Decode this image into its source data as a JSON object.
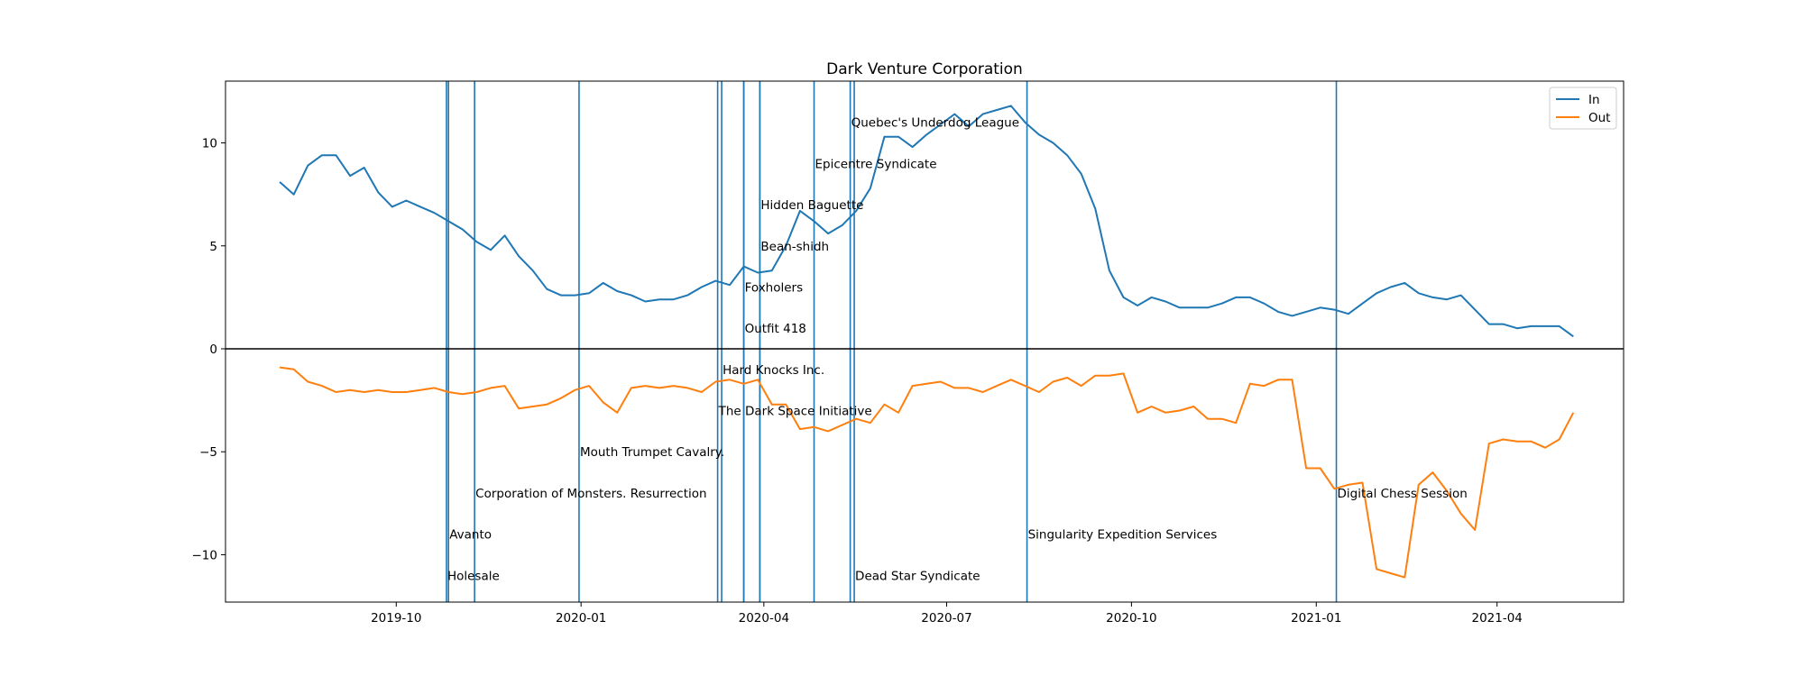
{
  "chart_data": {
    "type": "line",
    "title": "Dark Venture Corporation",
    "xlabel": "",
    "ylabel": "",
    "x_start": "2019-08-04",
    "x_range": [
      "2019-07-08",
      "2021-06-03"
    ],
    "ylim": [
      -12.3,
      13.0
    ],
    "grid": false,
    "legend_position": "top-right",
    "x_ticks": [
      {
        "date": "2019-10-01",
        "label": "2019-10"
      },
      {
        "date": "2020-01-01",
        "label": "2020-01"
      },
      {
        "date": "2020-04-01",
        "label": "2020-04"
      },
      {
        "date": "2020-07-01",
        "label": "2020-07"
      },
      {
        "date": "2020-10-01",
        "label": "2020-10"
      },
      {
        "date": "2021-01-01",
        "label": "2021-01"
      },
      {
        "date": "2021-04-01",
        "label": "2021-04"
      }
    ],
    "y_ticks": [
      -10,
      -5,
      0,
      5,
      10
    ],
    "zero_line": true,
    "series": [
      {
        "name": "In",
        "color": "#1f77b4",
        "values": [
          8.1,
          7.5,
          8.9,
          9.4,
          9.4,
          8.4,
          8.8,
          7.6,
          6.9,
          7.2,
          6.9,
          6.6,
          6.2,
          5.8,
          5.2,
          4.8,
          5.5,
          4.5,
          3.8,
          2.9,
          2.6,
          2.6,
          2.7,
          3.2,
          2.8,
          2.6,
          2.3,
          2.4,
          2.4,
          2.6,
          3.0,
          3.3,
          3.1,
          4.0,
          3.7,
          3.8,
          5.0,
          6.7,
          6.2,
          5.6,
          6.0,
          6.7,
          7.8,
          10.3,
          10.3,
          9.8,
          10.4,
          10.9,
          11.4,
          10.8,
          11.4,
          11.6,
          11.8,
          11.0,
          10.4,
          10.0,
          9.4,
          8.5,
          6.8,
          3.8,
          2.5,
          2.1,
          2.5,
          2.3,
          2.0,
          2.0,
          2.0,
          2.2,
          2.5,
          2.5,
          2.2,
          1.8,
          1.6,
          1.8,
          2.0,
          1.9,
          1.7,
          2.2,
          2.7,
          3.0,
          3.2,
          2.7,
          2.5,
          2.4,
          2.6,
          1.9,
          1.2,
          1.2,
          1.0,
          1.1,
          1.1,
          1.1,
          0.6
        ]
      },
      {
        "name": "Out",
        "color": "#ff7f0e",
        "values": [
          -0.9,
          -1.0,
          -1.6,
          -1.8,
          -2.1,
          -2.0,
          -2.1,
          -2.0,
          -2.1,
          -2.1,
          -2.0,
          -1.9,
          -2.1,
          -2.2,
          -2.1,
          -1.9,
          -1.8,
          -2.9,
          -2.8,
          -2.7,
          -2.4,
          -2.0,
          -1.8,
          -2.6,
          -3.1,
          -1.9,
          -1.8,
          -1.9,
          -1.8,
          -1.9,
          -2.1,
          -1.6,
          -1.5,
          -1.7,
          -1.5,
          -2.7,
          -2.7,
          -3.9,
          -3.8,
          -4.0,
          -3.7,
          -3.4,
          -3.6,
          -2.7,
          -3.1,
          -1.8,
          -1.7,
          -1.6,
          -1.9,
          -1.9,
          -2.1,
          -1.8,
          -1.5,
          -1.8,
          -2.1,
          -1.6,
          -1.4,
          -1.8,
          -1.3,
          -1.3,
          -1.2,
          -3.1,
          -2.8,
          -3.1,
          -3.0,
          -2.8,
          -3.4,
          -3.4,
          -3.6,
          -1.7,
          -1.8,
          -1.5,
          -1.5,
          -5.8,
          -5.8,
          -6.8,
          -6.6,
          -6.5,
          -10.7,
          -10.9,
          -11.1,
          -6.6,
          -6.0,
          -6.9,
          -8.0,
          -8.8,
          -4.6,
          -4.4,
          -4.5,
          -4.5,
          -4.8,
          -4.4,
          -3.1
        ]
      }
    ],
    "events": [
      {
        "date": "2019-10-26",
        "label": "Holesale",
        "label_y": -11.0
      },
      {
        "date": "2019-10-27",
        "label": "Avanto",
        "label_y": -9.0
      },
      {
        "date": "2019-11-09",
        "label": "Corporation of Monsters. Resurrection",
        "label_y": -7.0
      },
      {
        "date": "2019-12-31",
        "label": "Mouth Trumpet Cavalry.",
        "label_y": -5.0
      },
      {
        "date": "2020-03-09",
        "label": "The Dark Space Initiative",
        "label_y": -3.0
      },
      {
        "date": "2020-03-11",
        "label": "Hard Knocks Inc.",
        "label_y": -1.0
      },
      {
        "date": "2020-03-22",
        "label": "Outfit 418",
        "label_y": 1.0
      },
      {
        "date": "2020-03-22",
        "label": "Foxholers",
        "label_y": 3.0
      },
      {
        "date": "2020-03-30",
        "label": "Bean-shidh",
        "label_y": 5.0
      },
      {
        "date": "2020-03-30",
        "label": "Hidden Baguette",
        "label_y": 7.0
      },
      {
        "date": "2020-04-26",
        "label": "Epicentre Syndicate",
        "label_y": 9.0
      },
      {
        "date": "2020-05-14",
        "label": "Quebec's Underdog League",
        "label_y": 11.0
      },
      {
        "date": "2020-05-16",
        "label": "Dead Star Syndicate",
        "label_y": -11.0
      },
      {
        "date": "2020-08-10",
        "label": "Singularity Expedition Services",
        "label_y": -9.0
      },
      {
        "date": "2021-01-11",
        "label": "Digital Chess Session",
        "label_y": -7.0
      }
    ],
    "event_color": "#1f77b4"
  }
}
